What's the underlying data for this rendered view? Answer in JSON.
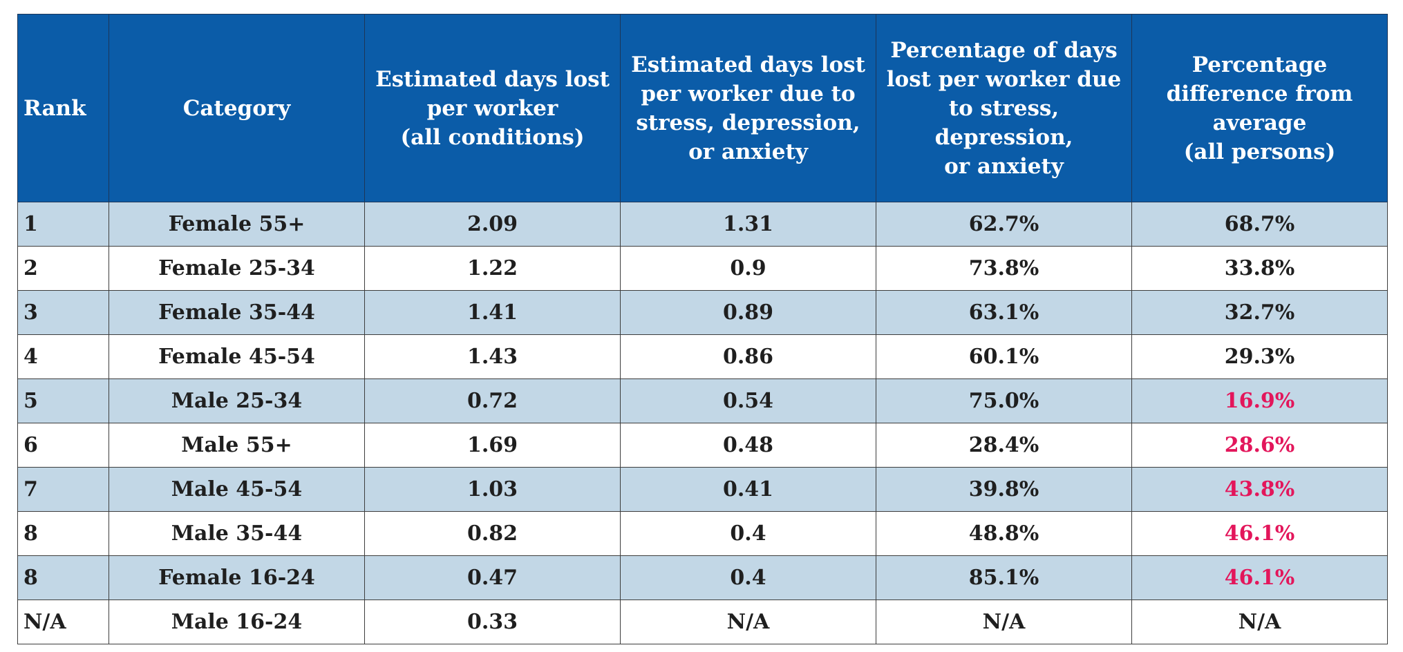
{
  "chart_data": {
    "type": "table",
    "columns": [
      {
        "key": "rank",
        "lines": [
          "Rank"
        ]
      },
      {
        "key": "category",
        "lines": [
          "Category"
        ]
      },
      {
        "key": "days_all",
        "lines": [
          "Estimated days lost",
          "per worker",
          "(all conditions)"
        ]
      },
      {
        "key": "days_stress",
        "lines": [
          "Estimated days lost",
          "per worker due to",
          "stress, depression,",
          "or anxiety"
        ]
      },
      {
        "key": "pct_stress",
        "lines": [
          "Percentage of days",
          "lost per worker due",
          "to stress, depression,",
          "or anxiety"
        ]
      },
      {
        "key": "pct_diff",
        "lines": [
          "Percentage",
          "difference from",
          "average",
          "(all persons)"
        ]
      }
    ],
    "rows": [
      {
        "rank": "1",
        "category": "Female 55+",
        "days_all": "2.09",
        "days_stress": "1.31",
        "pct_stress": "62.7%",
        "pct_diff": "68.7%",
        "below_average": false
      },
      {
        "rank": "2",
        "category": "Female 25-34",
        "days_all": "1.22",
        "days_stress": "0.9",
        "pct_stress": "73.8%",
        "pct_diff": "33.8%",
        "below_average": false
      },
      {
        "rank": "3",
        "category": "Female 35-44",
        "days_all": "1.41",
        "days_stress": "0.89",
        "pct_stress": "63.1%",
        "pct_diff": "32.7%",
        "below_average": false
      },
      {
        "rank": "4",
        "category": "Female 45-54",
        "days_all": "1.43",
        "days_stress": "0.86",
        "pct_stress": "60.1%",
        "pct_diff": "29.3%",
        "below_average": false
      },
      {
        "rank": "5",
        "category": "Male 25-34",
        "days_all": "0.72",
        "days_stress": "0.54",
        "pct_stress": "75.0%",
        "pct_diff": "16.9%",
        "below_average": true
      },
      {
        "rank": "6",
        "category": "Male 55+",
        "days_all": "1.69",
        "days_stress": "0.48",
        "pct_stress": "28.4%",
        "pct_diff": "28.6%",
        "below_average": true
      },
      {
        "rank": "7",
        "category": "Male 45-54",
        "days_all": "1.03",
        "days_stress": "0.41",
        "pct_stress": "39.8%",
        "pct_diff": "43.8%",
        "below_average": true
      },
      {
        "rank": "8",
        "category": "Male 35-44",
        "days_all": "0.82",
        "days_stress": "0.4",
        "pct_stress": "48.8%",
        "pct_diff": "46.1%",
        "below_average": true
      },
      {
        "rank": "8",
        "category": "Female 16-24",
        "days_all": "0.47",
        "days_stress": "0.4",
        "pct_stress": "85.1%",
        "pct_diff": "46.1%",
        "below_average": true
      },
      {
        "rank": "N/A",
        "category": "Male 16-24",
        "days_all": "0.33",
        "days_stress": "N/A",
        "pct_stress": "N/A",
        "pct_diff": "N/A",
        "below_average": false
      }
    ]
  },
  "colors": {
    "header_bg": "#0b5ca8",
    "header_text": "#ffffff",
    "row_shaded": "#c2d7e6",
    "row_plain": "#ffffff",
    "text": "#1f1f1f",
    "below_average": "#e3165b"
  }
}
